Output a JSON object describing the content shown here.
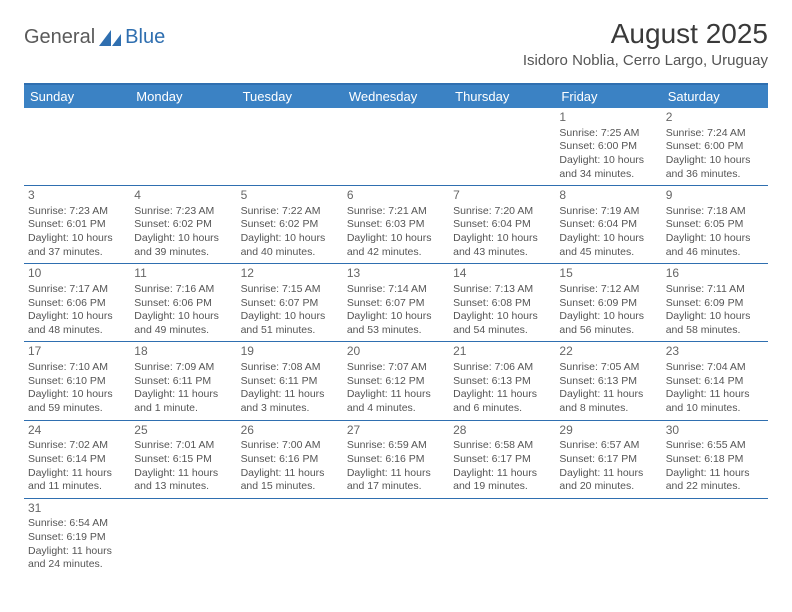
{
  "logo": {
    "text1": "General",
    "text2": "Blue"
  },
  "title": "August 2025",
  "location": "Isidoro Noblia, Cerro Largo, Uruguay",
  "weekdays": [
    "Sunday",
    "Monday",
    "Tuesday",
    "Wednesday",
    "Thursday",
    "Friday",
    "Saturday"
  ],
  "colors": {
    "header_bar": "#3b82c4",
    "rule": "#2f6fb0",
    "text": "#555555",
    "title": "#3a3a3a"
  },
  "weeks": [
    [
      null,
      null,
      null,
      null,
      null,
      {
        "n": "1",
        "sr": "Sunrise: 7:25 AM",
        "ss": "Sunset: 6:00 PM",
        "d1": "Daylight: 10 hours",
        "d2": "and 34 minutes."
      },
      {
        "n": "2",
        "sr": "Sunrise: 7:24 AM",
        "ss": "Sunset: 6:00 PM",
        "d1": "Daylight: 10 hours",
        "d2": "and 36 minutes."
      }
    ],
    [
      {
        "n": "3",
        "sr": "Sunrise: 7:23 AM",
        "ss": "Sunset: 6:01 PM",
        "d1": "Daylight: 10 hours",
        "d2": "and 37 minutes."
      },
      {
        "n": "4",
        "sr": "Sunrise: 7:23 AM",
        "ss": "Sunset: 6:02 PM",
        "d1": "Daylight: 10 hours",
        "d2": "and 39 minutes."
      },
      {
        "n": "5",
        "sr": "Sunrise: 7:22 AM",
        "ss": "Sunset: 6:02 PM",
        "d1": "Daylight: 10 hours",
        "d2": "and 40 minutes."
      },
      {
        "n": "6",
        "sr": "Sunrise: 7:21 AM",
        "ss": "Sunset: 6:03 PM",
        "d1": "Daylight: 10 hours",
        "d2": "and 42 minutes."
      },
      {
        "n": "7",
        "sr": "Sunrise: 7:20 AM",
        "ss": "Sunset: 6:04 PM",
        "d1": "Daylight: 10 hours",
        "d2": "and 43 minutes."
      },
      {
        "n": "8",
        "sr": "Sunrise: 7:19 AM",
        "ss": "Sunset: 6:04 PM",
        "d1": "Daylight: 10 hours",
        "d2": "and 45 minutes."
      },
      {
        "n": "9",
        "sr": "Sunrise: 7:18 AM",
        "ss": "Sunset: 6:05 PM",
        "d1": "Daylight: 10 hours",
        "d2": "and 46 minutes."
      }
    ],
    [
      {
        "n": "10",
        "sr": "Sunrise: 7:17 AM",
        "ss": "Sunset: 6:06 PM",
        "d1": "Daylight: 10 hours",
        "d2": "and 48 minutes."
      },
      {
        "n": "11",
        "sr": "Sunrise: 7:16 AM",
        "ss": "Sunset: 6:06 PM",
        "d1": "Daylight: 10 hours",
        "d2": "and 49 minutes."
      },
      {
        "n": "12",
        "sr": "Sunrise: 7:15 AM",
        "ss": "Sunset: 6:07 PM",
        "d1": "Daylight: 10 hours",
        "d2": "and 51 minutes."
      },
      {
        "n": "13",
        "sr": "Sunrise: 7:14 AM",
        "ss": "Sunset: 6:07 PM",
        "d1": "Daylight: 10 hours",
        "d2": "and 53 minutes."
      },
      {
        "n": "14",
        "sr": "Sunrise: 7:13 AM",
        "ss": "Sunset: 6:08 PM",
        "d1": "Daylight: 10 hours",
        "d2": "and 54 minutes."
      },
      {
        "n": "15",
        "sr": "Sunrise: 7:12 AM",
        "ss": "Sunset: 6:09 PM",
        "d1": "Daylight: 10 hours",
        "d2": "and 56 minutes."
      },
      {
        "n": "16",
        "sr": "Sunrise: 7:11 AM",
        "ss": "Sunset: 6:09 PM",
        "d1": "Daylight: 10 hours",
        "d2": "and 58 minutes."
      }
    ],
    [
      {
        "n": "17",
        "sr": "Sunrise: 7:10 AM",
        "ss": "Sunset: 6:10 PM",
        "d1": "Daylight: 10 hours",
        "d2": "and 59 minutes."
      },
      {
        "n": "18",
        "sr": "Sunrise: 7:09 AM",
        "ss": "Sunset: 6:11 PM",
        "d1": "Daylight: 11 hours",
        "d2": "and 1 minute."
      },
      {
        "n": "19",
        "sr": "Sunrise: 7:08 AM",
        "ss": "Sunset: 6:11 PM",
        "d1": "Daylight: 11 hours",
        "d2": "and 3 minutes."
      },
      {
        "n": "20",
        "sr": "Sunrise: 7:07 AM",
        "ss": "Sunset: 6:12 PM",
        "d1": "Daylight: 11 hours",
        "d2": "and 4 minutes."
      },
      {
        "n": "21",
        "sr": "Sunrise: 7:06 AM",
        "ss": "Sunset: 6:13 PM",
        "d1": "Daylight: 11 hours",
        "d2": "and 6 minutes."
      },
      {
        "n": "22",
        "sr": "Sunrise: 7:05 AM",
        "ss": "Sunset: 6:13 PM",
        "d1": "Daylight: 11 hours",
        "d2": "and 8 minutes."
      },
      {
        "n": "23",
        "sr": "Sunrise: 7:04 AM",
        "ss": "Sunset: 6:14 PM",
        "d1": "Daylight: 11 hours",
        "d2": "and 10 minutes."
      }
    ],
    [
      {
        "n": "24",
        "sr": "Sunrise: 7:02 AM",
        "ss": "Sunset: 6:14 PM",
        "d1": "Daylight: 11 hours",
        "d2": "and 11 minutes."
      },
      {
        "n": "25",
        "sr": "Sunrise: 7:01 AM",
        "ss": "Sunset: 6:15 PM",
        "d1": "Daylight: 11 hours",
        "d2": "and 13 minutes."
      },
      {
        "n": "26",
        "sr": "Sunrise: 7:00 AM",
        "ss": "Sunset: 6:16 PM",
        "d1": "Daylight: 11 hours",
        "d2": "and 15 minutes."
      },
      {
        "n": "27",
        "sr": "Sunrise: 6:59 AM",
        "ss": "Sunset: 6:16 PM",
        "d1": "Daylight: 11 hours",
        "d2": "and 17 minutes."
      },
      {
        "n": "28",
        "sr": "Sunrise: 6:58 AM",
        "ss": "Sunset: 6:17 PM",
        "d1": "Daylight: 11 hours",
        "d2": "and 19 minutes."
      },
      {
        "n": "29",
        "sr": "Sunrise: 6:57 AM",
        "ss": "Sunset: 6:17 PM",
        "d1": "Daylight: 11 hours",
        "d2": "and 20 minutes."
      },
      {
        "n": "30",
        "sr": "Sunrise: 6:55 AM",
        "ss": "Sunset: 6:18 PM",
        "d1": "Daylight: 11 hours",
        "d2": "and 22 minutes."
      }
    ],
    [
      {
        "n": "31",
        "sr": "Sunrise: 6:54 AM",
        "ss": "Sunset: 6:19 PM",
        "d1": "Daylight: 11 hours",
        "d2": "and 24 minutes."
      },
      null,
      null,
      null,
      null,
      null,
      null
    ]
  ]
}
